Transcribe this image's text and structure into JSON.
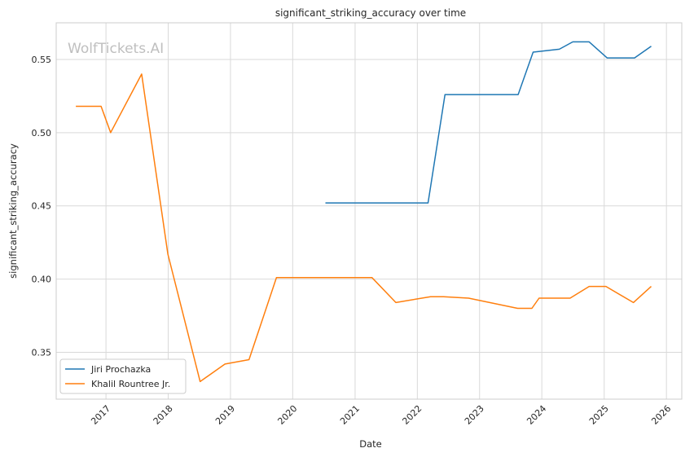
{
  "chart_data": {
    "type": "line",
    "title": "significant_striking_accuracy over time",
    "xlabel": "Date",
    "ylabel": "significant_striking_accuracy",
    "watermark": "WolfTickets.AI",
    "xlim": [
      "2016-03-15",
      "2026-04-01"
    ],
    "ylim": [
      0.318,
      0.575
    ],
    "x_ticks": [
      "2017",
      "2018",
      "2019",
      "2020",
      "2021",
      "2022",
      "2023",
      "2024",
      "2025",
      "2026"
    ],
    "y_ticks": [
      "0.35",
      "0.40",
      "0.45",
      "0.50",
      "0.55"
    ],
    "grid": true,
    "legend_position": "lower-left",
    "series": [
      {
        "name": "Jiri Prochazka",
        "color": "#1f77b4",
        "points": [
          {
            "x": "2020-07-11",
            "y": 0.452
          },
          {
            "x": "2022-03-05",
            "y": 0.452
          },
          {
            "x": "2022-06-12",
            "y": 0.526
          },
          {
            "x": "2023-08-15",
            "y": 0.526
          },
          {
            "x": "2023-11-11",
            "y": 0.555
          },
          {
            "x": "2024-04-13",
            "y": 0.557
          },
          {
            "x": "2024-07-01",
            "y": 0.562
          },
          {
            "x": "2024-10-05",
            "y": 0.562
          },
          {
            "x": "2025-01-18",
            "y": 0.551
          },
          {
            "x": "2025-06-28",
            "y": 0.551
          },
          {
            "x": "2025-10-04",
            "y": 0.559
          }
        ]
      },
      {
        "name": "Khalil Rountree Jr.",
        "color": "#ff7f0e",
        "points": [
          {
            "x": "2016-07-08",
            "y": 0.518
          },
          {
            "x": "2016-12-03",
            "y": 0.518
          },
          {
            "x": "2017-01-28",
            "y": 0.5
          },
          {
            "x": "2017-07-29",
            "y": 0.54
          },
          {
            "x": "2017-12-30",
            "y": 0.417
          },
          {
            "x": "2018-07-07",
            "y": 0.33
          },
          {
            "x": "2018-11-30",
            "y": 0.342
          },
          {
            "x": "2019-04-20",
            "y": 0.345
          },
          {
            "x": "2019-09-28",
            "y": 0.401
          },
          {
            "x": "2020-10-17",
            "y": 0.401
          },
          {
            "x": "2021-04-10",
            "y": 0.401
          },
          {
            "x": "2021-08-28",
            "y": 0.384
          },
          {
            "x": "2022-03-19",
            "y": 0.388
          },
          {
            "x": "2022-06-04",
            "y": 0.388
          },
          {
            "x": "2022-10-29",
            "y": 0.387
          },
          {
            "x": "2023-08-12",
            "y": 0.38
          },
          {
            "x": "2023-11-04",
            "y": 0.38
          },
          {
            "x": "2023-12-16",
            "y": 0.387
          },
          {
            "x": "2024-06-15",
            "y": 0.387
          },
          {
            "x": "2024-10-05",
            "y": 0.395
          },
          {
            "x": "2025-01-11",
            "y": 0.395
          },
          {
            "x": "2025-06-21",
            "y": 0.384
          },
          {
            "x": "2025-10-04",
            "y": 0.395
          }
        ]
      }
    ]
  }
}
